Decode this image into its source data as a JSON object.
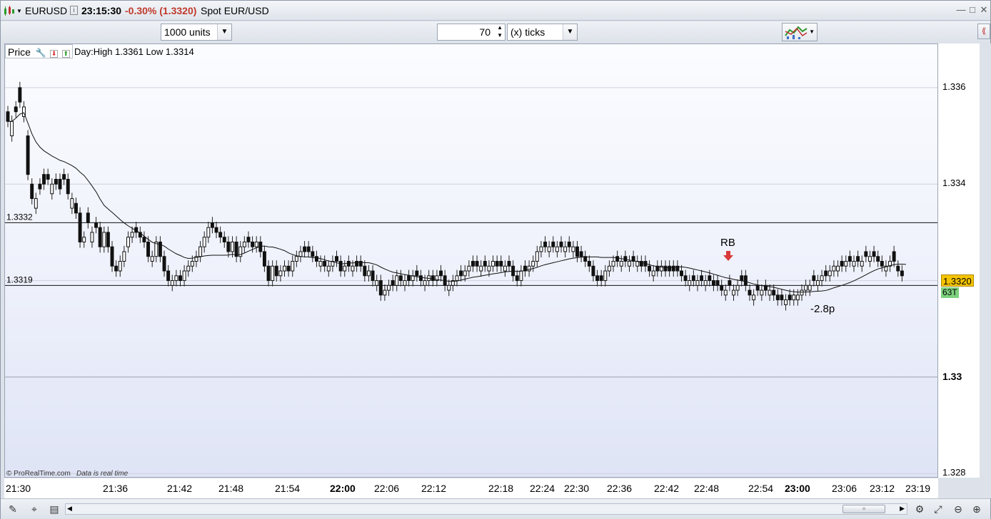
{
  "window": {
    "symbol": "EURUSD",
    "time": "23:15:30",
    "change": "-0.30% (1.3320)",
    "instrument": "Spot EUR/USD",
    "controls": [
      "—",
      "□",
      "✕"
    ]
  },
  "toolbar": {
    "units": "1000 units",
    "tick_count": "70",
    "tick_mode": "(x) ticks"
  },
  "chart_header": {
    "price_label": "Price",
    "day_range": "Day:High 1.3361 Low 1.3314"
  },
  "annotations": {
    "level_upper": "1.3332",
    "level_lower": "1.3319",
    "marker": "RB",
    "pnl": "-2.8p"
  },
  "price_badge": "1.3320",
  "tick_badge": "63T",
  "footer": {
    "brand": "© ProRealTime.com",
    "realtime": "Data is real time"
  },
  "colors": {
    "price_badge_bg": "#f5c400",
    "tick_badge_bg": "#7ed17e",
    "change": "#c0392b",
    "marker_arrow": "#d93a3a"
  },
  "chart_data": {
    "type": "candlestick",
    "ylim": [
      1.3279,
      1.3369
    ],
    "y_ticks": [
      "1.336",
      "1.334",
      "1.332",
      "1.33",
      "1.328"
    ],
    "x_ticks": [
      "21:30",
      "21:36",
      "21:42",
      "21:48",
      "21:54",
      "22:00",
      "22:06",
      "22:12",
      "22:18",
      "22:24",
      "22:30",
      "22:36",
      "22:42",
      "22:48",
      "22:54",
      "23:00",
      "23:06",
      "23:12",
      "23:19"
    ],
    "x_ticks_bold": [
      "22:00",
      "23:00"
    ],
    "horizontal_lines": [
      1.3332,
      1.3319
    ],
    "close": [
      1.3353,
      1.3353,
      1.3355,
      1.3357,
      1.3356,
      1.3342,
      1.3337,
      1.3337,
      1.3339,
      1.334,
      1.3341,
      1.334,
      1.334,
      1.3339,
      1.3341,
      1.3338,
      1.3337,
      1.3334,
      1.3328,
      1.3329,
      1.3332,
      1.333,
      1.3331,
      1.3327,
      1.333,
      1.3327,
      1.3323,
      1.3322,
      1.3324,
      1.3326,
      1.3329,
      1.333,
      1.333,
      1.3329,
      1.3328,
      1.3325,
      1.3325,
      1.3328,
      1.3325,
      1.3322,
      1.332,
      1.332,
      1.3321,
      1.332,
      1.3322,
      1.3323,
      1.3324,
      1.3325,
      1.3327,
      1.3329,
      1.3331,
      1.3331,
      1.333,
      1.3329,
      1.3328,
      1.3326,
      1.3328,
      1.3325,
      1.3327,
      1.3328,
      1.3328,
      1.3327,
      1.3328,
      1.3326,
      1.3323,
      1.332,
      1.3323,
      1.3321,
      1.3322,
      1.3323,
      1.3322,
      1.3324,
      1.3325,
      1.3326,
      1.3326,
      1.3326,
      1.3325,
      1.3324,
      1.3324,
      1.3323,
      1.3323,
      1.3324,
      1.3324,
      1.3322,
      1.3323,
      1.3323,
      1.3323,
      1.3323,
      1.3323,
      1.3321,
      1.3322,
      1.332,
      1.332,
      1.3317,
      1.3318,
      1.3319,
      1.3319,
      1.3321,
      1.332,
      1.332,
      1.332,
      1.3321,
      1.3321,
      1.332,
      1.332,
      1.3321,
      1.332,
      1.3321,
      1.3321,
      1.3319,
      1.3319,
      1.332,
      1.3321,
      1.3321,
      1.3322,
      1.3323,
      1.3323,
      1.3323,
      1.3323,
      1.3323,
      1.3323,
      1.3324,
      1.3323,
      1.3323,
      1.3323,
      1.3323,
      1.3321,
      1.332,
      1.3322,
      1.3322,
      1.3323,
      1.3324,
      1.3326,
      1.3327,
      1.3327,
      1.3327,
      1.3327,
      1.3327,
      1.3327,
      1.3327,
      1.3327,
      1.3327,
      1.3325,
      1.3325,
      1.3324,
      1.3323,
      1.3321,
      1.332,
      1.332,
      1.3322,
      1.3323,
      1.3324,
      1.3324,
      1.3324,
      1.3324,
      1.3324,
      1.3324,
      1.3324,
      1.3323,
      1.3323,
      1.3322,
      1.3322,
      1.3322,
      1.3323,
      1.3322,
      1.3322,
      1.3322,
      1.3322,
      1.3321,
      1.332,
      1.332,
      1.332,
      1.332,
      1.332,
      1.332,
      1.332,
      1.3319,
      1.3319,
      1.3318,
      1.3318,
      1.3319,
      1.3318,
      1.3319,
      1.332,
      1.3319,
      1.3317,
      1.3317,
      1.3318,
      1.3318,
      1.3318,
      1.3318,
      1.3317,
      1.3316,
      1.3316,
      1.3316,
      1.3316,
      1.3317,
      1.3317,
      1.3318,
      1.3319,
      1.3319,
      1.332,
      1.332,
      1.3321,
      1.3321,
      1.3322,
      1.3323,
      1.3323,
      1.3323,
      1.3324,
      1.3324,
      1.3324,
      1.3324,
      1.3324,
      1.3325,
      1.3325,
      1.3325,
      1.3324,
      1.3323,
      1.3323,
      1.3324,
      1.3324,
      1.3322,
      1.3321,
      1.332
    ],
    "open_offset": [
      0.0002,
      -0.0003,
      0.0001,
      0.0003,
      -0.0002,
      0.0008,
      0.0003,
      -0.0002,
      0.0001,
      0.0002,
      0.0001,
      -0.0002,
      0.0001,
      0.0002,
      0.0001,
      0.0003,
      -0.0002,
      0.0002,
      0.0006,
      -0.0001,
      0.0002,
      -0.0002,
      0.0001,
      0.0004,
      -0.0003,
      0.0003,
      0.0004,
      0.0001,
      -0.0002,
      -0.0002,
      -0.0002,
      -0.0001,
      0.0001,
      0.0001,
      0.0001,
      0.0003,
      -0.0001,
      -0.0003,
      0.0003,
      0.0003,
      0.0002,
      -0.0001,
      -0.0001,
      0.0001,
      -0.0002,
      -0.0001,
      -0.0001,
      -0.0001,
      -0.0002,
      -0.0002,
      -0.0002,
      0.0001,
      0.0001,
      0.0001,
      0.0001,
      0.0002,
      -0.0002,
      0.0003,
      -0.0002,
      -0.0001,
      0.0001,
      0.0001,
      -0.0001,
      0.0002,
      0.0003,
      0.0003,
      -0.0003,
      0.0002,
      -0.0001,
      -0.0001,
      0.0001,
      -0.0002,
      -0.0001,
      -0.0001,
      0.0001,
      0.0001,
      0.0001,
      0.0001,
      -0.0001,
      0.0001,
      -0.0001,
      -0.0001,
      0.0001,
      0.0002,
      -0.0001,
      0.0001,
      -0.0001,
      0.0001,
      0.0001,
      0.0002,
      -0.0001,
      0.0002,
      -0.0001,
      0.0003,
      -0.0001,
      -0.0001,
      0.0001,
      -0.0002,
      0.0001,
      -0.0001,
      0.0001,
      -0.0001,
      0.0001,
      0.0001,
      -0.0001,
      -0.0001,
      0.0001,
      -0.0001,
      0.0001,
      0.0002,
      -0.0001,
      -0.0001,
      -0.0001,
      0.0001,
      -0.0001,
      -0.0001,
      0.0001,
      0.0001,
      -0.0001,
      0.0001,
      -0.0001,
      -0.0001,
      0.0001,
      0.0001,
      -0.0001,
      0.0001,
      0.0002,
      0.0001,
      -0.0002,
      0.0001,
      -0.0001,
      -0.0001,
      -0.0002,
      -0.0001,
      0.0001,
      -0.0001,
      0.0001,
      -0.0001,
      0.0001,
      -0.0001,
      0.0001,
      -0.0001,
      0.0002,
      0.0001,
      0.0001,
      0.0001,
      0.0002,
      0.0001,
      0.0001,
      -0.0002,
      -0.0001,
      -0.0001,
      0.0001,
      -0.0001,
      0.0001,
      -0.0001,
      0.0001,
      -0.0001,
      0.0001,
      0.0001,
      0.0001,
      -0.0001,
      0.0001,
      -0.0001,
      0.0001,
      0.0001,
      0.0001,
      0.0001,
      0.0001,
      0.0001,
      -0.0001,
      0.0001,
      -0.0001,
      0.0001,
      -0.0001,
      0.0001,
      0.0001,
      0.0001,
      0.0001,
      -0.0001,
      0.0001,
      -0.0001,
      -0.0001,
      0.0001,
      0.0002,
      0.0001,
      -0.0001,
      0.0001,
      -0.0001,
      0.0001,
      -0.0001,
      0.0001,
      0.0001,
      0.0001,
      -0.0001,
      0.0001,
      -0.0001,
      -0.0001,
      -0.0001,
      -0.0001,
      -0.0001,
      0.0001,
      -0.0001,
      -0.0001,
      0.0001,
      -0.0001,
      -0.0001,
      -0.0001,
      0.0001,
      -0.0001,
      0.0001,
      -0.0001,
      0.0001,
      -0.0001,
      0.0001,
      -0.0001,
      0.0001,
      0.0001,
      0.0001,
      -0.0001,
      -0.0001,
      0.0002,
      0.0001,
      0.0001
    ],
    "moving_average": {
      "period": 20
    }
  }
}
